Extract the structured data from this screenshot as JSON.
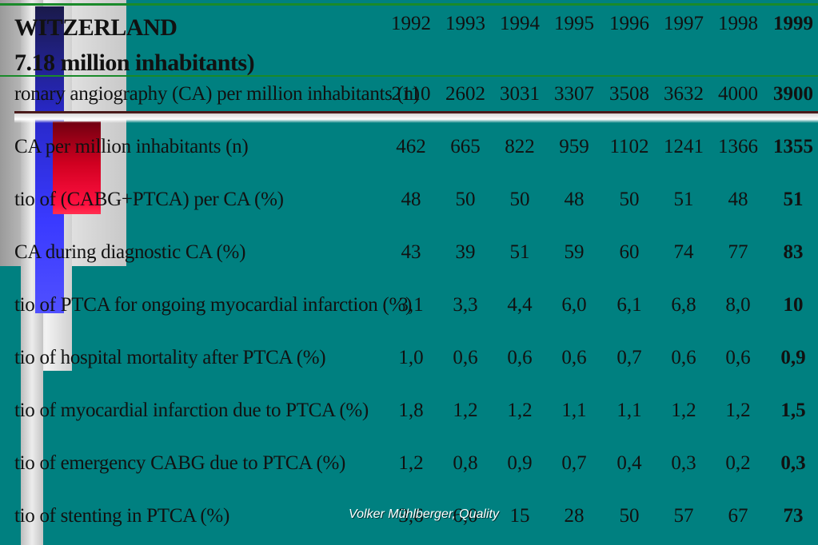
{
  "title": {
    "country": "WITZERLAND",
    "population": "7.18 million inhabitants)"
  },
  "years": [
    "1992",
    "1993",
    "1994",
    "1995",
    "1996",
    "1997",
    "1998",
    "1999"
  ],
  "rows": [
    {
      "label": "ronary angiography (CA) per million inhabitants (n)",
      "values": [
        "2110",
        "2602",
        "3031",
        "3307",
        "3508",
        "3632",
        "4000",
        "3900"
      ]
    },
    {
      "label": "CA per million inhabitants (n)",
      "values": [
        "462",
        "665",
        "822",
        "959",
        "1102",
        "1241",
        "1366",
        "1355"
      ]
    },
    {
      "label": "tio of (CABG+PTCA) per CA (%)",
      "values": [
        "48",
        "50",
        "50",
        "48",
        "50",
        "51",
        "48",
        "51"
      ]
    },
    {
      "label": "CA during diagnostic CA (%)",
      "values": [
        "43",
        "39",
        "51",
        "59",
        "60",
        "74",
        "77",
        "83"
      ]
    },
    {
      "label": "tio of PTCA for ongoing myocardial infarction (%)",
      "values": [
        "3,1",
        "3,3",
        "4,4",
        "6,0",
        "6,1",
        "6,8",
        "8,0",
        "10"
      ]
    },
    {
      "label": "tio of hospital mortality after PTCA (%)",
      "values": [
        "1,0",
        "0,6",
        "0,6",
        "0,6",
        "0,7",
        "0,6",
        "0,6",
        "0,9"
      ]
    },
    {
      "label": "tio of myocardial infarction due to PTCA (%)",
      "values": [
        "1,8",
        "1,2",
        "1,2",
        "1,1",
        "1,1",
        "1,2",
        "1,2",
        "1,5"
      ]
    },
    {
      "label": "tio of emergency CABG due to PTCA (%)",
      "values": [
        "1,2",
        "0,8",
        "0,9",
        "0,7",
        "0,4",
        "0,3",
        "0,2",
        "0,3"
      ]
    },
    {
      "label": "tio of stenting in PTCA (%)",
      "values": [
        "3,6",
        "6,0",
        "15",
        "28",
        "50",
        "57",
        "67",
        "73"
      ]
    }
  ],
  "footer": "Volker Mühlberger, Quality",
  "colors": {
    "background": "#008080",
    "rule": "#1a8a2a",
    "accent_blue": "#3a3aff",
    "accent_red": "#ff1040"
  }
}
